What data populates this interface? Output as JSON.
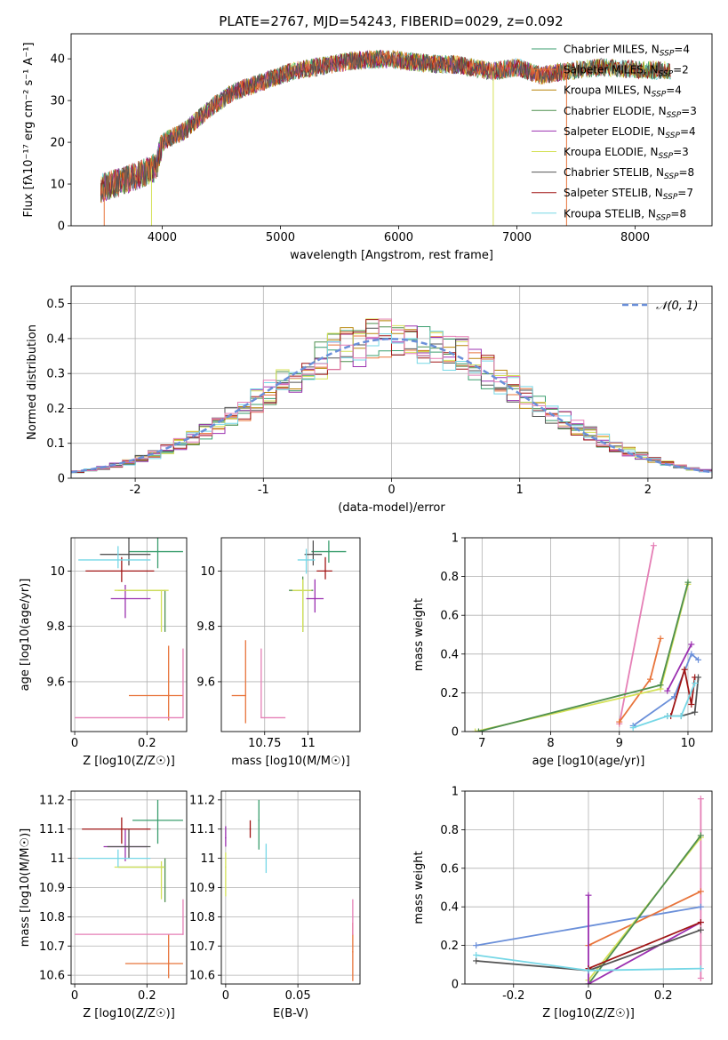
{
  "figure_title": "PLATE=2767, MJD=54243, FIBERID=0029, z=0.092",
  "models": [
    {
      "name": "Chabrier MILES",
      "n": "4",
      "color": "#3a9e6e"
    },
    {
      "name": "Salpeter MILES",
      "n": "2",
      "color": "#e8743b"
    },
    {
      "name": "Kroupa MILES",
      "n": "4",
      "color": "#b8860b"
    },
    {
      "name": "Chabrier ELODIE",
      "n": "3",
      "color": "#4f8f4f"
    },
    {
      "name": "Salpeter ELODIE",
      "n": "4",
      "color": "#9b30b0"
    },
    {
      "name": "Kroupa ELODIE",
      "n": "3",
      "color": "#d4e157"
    },
    {
      "name": "Chabrier STELIB",
      "n": "8",
      "color": "#555555"
    },
    {
      "name": "Salpeter STELIB",
      "n": "7",
      "color": "#a01515"
    },
    {
      "name": "Kroupa STELIB",
      "n": "8",
      "color": "#76d7e6"
    }
  ],
  "chart_data": [
    {
      "id": "spectrum",
      "type": "line",
      "xlabel": "wavelength [Angstrom, rest frame]",
      "ylabel": "Flux [fλ10⁻¹⁷ erg cm⁻² s⁻¹ A⁻¹]",
      "xlim": [
        3230,
        8650
      ],
      "ylim": [
        0,
        46
      ],
      "xticks": [
        4000,
        5000,
        6000,
        7000,
        8000
      ],
      "yticks": [
        0,
        10,
        20,
        30,
        40
      ],
      "legend_position": "upper-right",
      "grid": false,
      "continuum": [
        [
          3480,
          9
        ],
        [
          3700,
          11
        ],
        [
          3950,
          14
        ],
        [
          4000,
          20
        ],
        [
          4200,
          23
        ],
        [
          4400,
          28
        ],
        [
          4600,
          32
        ],
        [
          4900,
          35
        ],
        [
          5100,
          37
        ],
        [
          5300,
          38
        ],
        [
          5600,
          39.5
        ],
        [
          5900,
          40
        ],
        [
          6200,
          39
        ],
        [
          6500,
          38.5
        ],
        [
          6800,
          37
        ],
        [
          7000,
          38
        ],
        [
          7200,
          36
        ],
        [
          7400,
          37
        ],
        [
          7700,
          38
        ],
        [
          8000,
          37.5
        ],
        [
          8400,
          37
        ]
      ]
    },
    {
      "id": "residuals",
      "type": "histogram",
      "xlabel": "(data-model)/error",
      "ylabel": "Normed distribution",
      "xlim": [
        -2.5,
        2.5
      ],
      "ylim": [
        0,
        0.55
      ],
      "xticks": [
        -2,
        -1,
        0,
        1,
        2
      ],
      "yticks": [
        0.0,
        0.1,
        0.2,
        0.3,
        0.4,
        0.5
      ],
      "grid": true,
      "legend": "𝒩(0, 1)",
      "legend_position": "upper-right",
      "reference": "normal(0,1)"
    },
    {
      "id": "z_age",
      "type": "errorbar",
      "xlabel": "Z [log10(Z/Z☉)]",
      "ylabel": "age  [log10(age/yr)]",
      "xlim": [
        -0.01,
        0.31
      ],
      "ylim": [
        9.42,
        10.12
      ],
      "xticks": [
        0.0,
        0.2
      ],
      "yticks": [
        9.6,
        9.8,
        10.0
      ],
      "grid": true,
      "points": [
        {
          "m": 0,
          "x": 0.23,
          "y": 10.07,
          "xerr": [
            0.08,
            0.07
          ],
          "yerr": [
            0.06,
            0.05
          ]
        },
        {
          "m": 1,
          "x": 0.26,
          "y": 9.55,
          "xerr": [
            0.11,
            0.04
          ],
          "yerr": [
            0.09,
            0.18
          ]
        },
        {
          "m": 2,
          "x": 0.13,
          "y": 9.93,
          "xerr": [
            0.0,
            0.0
          ],
          "yerr": [
            0.0,
            0.0
          ]
        },
        {
          "m": 3,
          "x": 0.25,
          "y": 9.93,
          "xerr": [
            0.13,
            0.0
          ],
          "yerr": [
            0.15,
            0.0
          ]
        },
        {
          "m": 4,
          "x": 0.14,
          "y": 9.9,
          "xerr": [
            0.04,
            0.07
          ],
          "yerr": [
            0.07,
            0.05
          ]
        },
        {
          "m": 5,
          "x": 0.24,
          "y": 9.93,
          "xerr": [
            0.13,
            0.02
          ],
          "yerr": [
            0.15,
            0.0
          ]
        },
        {
          "m": 6,
          "x": 0.15,
          "y": 10.06,
          "xerr": [
            0.08,
            0.06
          ],
          "yerr": [
            0.04,
            0.06
          ]
        },
        {
          "m": 7,
          "x": 0.13,
          "y": 10.0,
          "xerr": [
            0.1,
            0.09
          ],
          "yerr": [
            0.04,
            0.05
          ]
        },
        {
          "m": 8,
          "x": 0.12,
          "y": 10.04,
          "xerr": [
            0.11,
            0.09
          ],
          "yerr": [
            0.03,
            0.05
          ]
        },
        {
          "m": -1,
          "x": 0.3,
          "y": 9.47,
          "xerr": [
            0.3,
            0.0
          ],
          "yerr": [
            0.0,
            0.25
          ],
          "color": "#e57fb6"
        }
      ]
    },
    {
      "id": "mass_age",
      "type": "errorbar",
      "xlabel": "mass [log10(M/M☉)]",
      "ylabel": "",
      "xlim": [
        10.5,
        11.3
      ],
      "ylim": [
        9.42,
        10.12
      ],
      "xticks": [
        10.75,
        11.0
      ],
      "yticks": [
        9.6,
        9.8,
        10.0
      ],
      "grid": true,
      "points": [
        {
          "m": 0,
          "x": 11.12,
          "y": 10.07,
          "xerr": [
            0.1,
            0.1
          ],
          "yerr": [
            0.04,
            0.04
          ]
        },
        {
          "m": 1,
          "x": 10.64,
          "y": 9.55,
          "xerr": [
            0.08,
            0.0
          ],
          "yerr": [
            0.1,
            0.2
          ]
        },
        {
          "m": 3,
          "x": 10.97,
          "y": 9.93,
          "xerr": [
            0.08,
            0.06
          ],
          "yerr": [
            0.15,
            0.05
          ]
        },
        {
          "m": 4,
          "x": 11.04,
          "y": 9.9,
          "xerr": [
            0.05,
            0.05
          ],
          "yerr": [
            0.05,
            0.07
          ]
        },
        {
          "m": 5,
          "x": 10.97,
          "y": 9.93,
          "xerr": [
            0.06,
            0.05
          ],
          "yerr": [
            0.15,
            0.04
          ]
        },
        {
          "m": 6,
          "x": 11.03,
          "y": 10.06,
          "xerr": [
            0.05,
            0.05
          ],
          "yerr": [
            0.04,
            0.05
          ]
        },
        {
          "m": 7,
          "x": 11.1,
          "y": 10.0,
          "xerr": [
            0.05,
            0.04
          ],
          "yerr": [
            0.03,
            0.05
          ]
        },
        {
          "m": 8,
          "x": 10.99,
          "y": 10.04,
          "xerr": [
            0.05,
            0.05
          ],
          "yerr": [
            0.05,
            0.04
          ]
        },
        {
          "m": -1,
          "x": 10.73,
          "y": 9.47,
          "xerr": [
            0.0,
            0.14
          ],
          "yerr": [
            0.0,
            0.25
          ],
          "color": "#e57fb6"
        }
      ]
    },
    {
      "id": "age_weight",
      "type": "line",
      "xlabel": "age  [log10(age/yr)]",
      "ylabel": "mass weight",
      "xlim": [
        6.75,
        10.35
      ],
      "ylim": [
        0,
        1.0
      ],
      "xticks": [
        7,
        8,
        9,
        10
      ],
      "yticks": [
        0.0,
        0.2,
        0.4,
        0.6,
        0.8,
        1.0
      ],
      "grid": true,
      "series": [
        {
          "m": -1,
          "color": "#e57fb6",
          "x": [
            9.0,
            9.5
          ],
          "y": [
            0.04,
            0.96
          ]
        },
        {
          "m": 1,
          "color": "#e8743b",
          "x": [
            9.0,
            9.45,
            9.6
          ],
          "y": [
            0.05,
            0.27,
            0.48
          ]
        },
        {
          "m": 5,
          "color": "#d4e157",
          "x": [
            6.9,
            9.6,
            10.0
          ],
          "y": [
            0.0,
            0.22,
            0.76
          ]
        },
        {
          "m": 3,
          "color": "#4f8f4f",
          "x": [
            6.95,
            9.6,
            10.0
          ],
          "y": [
            0.0,
            0.24,
            0.77
          ]
        },
        {
          "m": 4,
          "color": "#9b30b0",
          "x": [
            9.7,
            10.05
          ],
          "y": [
            0.21,
            0.45
          ]
        },
        {
          "m": 0,
          "color": "#6a8fd9",
          "x": [
            9.2,
            9.8,
            10.05,
            10.15
          ],
          "y": [
            0.03,
            0.18,
            0.4,
            0.37
          ]
        },
        {
          "m": 7,
          "color": "#a01515",
          "x": [
            9.75,
            9.95,
            10.05,
            10.1
          ],
          "y": [
            0.08,
            0.32,
            0.14,
            0.28
          ]
        },
        {
          "m": 6,
          "color": "#555555",
          "x": [
            9.7,
            9.9,
            10.1,
            10.15
          ],
          "y": [
            0.08,
            0.08,
            0.1,
            0.28
          ]
        },
        {
          "m": 8,
          "color": "#76d7e6",
          "x": [
            9.2,
            9.7,
            9.9,
            10.1
          ],
          "y": [
            0.02,
            0.08,
            0.08,
            0.25
          ]
        }
      ]
    },
    {
      "id": "z_mass",
      "type": "errorbar",
      "xlabel": "Z [log10(Z/Z☉)]",
      "ylabel": "mass [log10(M/M☉)]",
      "xlim": [
        -0.01,
        0.31
      ],
      "ylim": [
        10.57,
        11.23
      ],
      "xticks": [
        0.0,
        0.2
      ],
      "yticks": [
        10.6,
        10.7,
        10.8,
        10.9,
        11.0,
        11.1,
        11.2
      ],
      "grid": true,
      "points": [
        {
          "m": 0,
          "x": 0.23,
          "y": 11.13,
          "xerr": [
            0.07,
            0.07
          ],
          "yerr": [
            0.08,
            0.07
          ]
        },
        {
          "m": 1,
          "x": 0.26,
          "y": 10.64,
          "xerr": [
            0.12,
            0.04
          ],
          "yerr": [
            0.05,
            0.1
          ]
        },
        {
          "m": 3,
          "x": 0.25,
          "y": 10.97,
          "xerr": [
            0.13,
            0.0
          ],
          "yerr": [
            0.12,
            0.03
          ]
        },
        {
          "m": 4,
          "x": 0.14,
          "y": 11.04,
          "xerr": [
            0.06,
            0.06
          ],
          "yerr": [
            0.05,
            0.06
          ]
        },
        {
          "m": 5,
          "x": 0.24,
          "y": 10.97,
          "xerr": [
            0.13,
            0.01
          ],
          "yerr": [
            0.11,
            0.02
          ]
        },
        {
          "m": 6,
          "x": 0.15,
          "y": 11.04,
          "xerr": [
            0.06,
            0.06
          ],
          "yerr": [
            0.04,
            0.06
          ]
        },
        {
          "m": 7,
          "x": 0.13,
          "y": 11.1,
          "xerr": [
            0.11,
            0.08
          ],
          "yerr": [
            0.05,
            0.04
          ]
        },
        {
          "m": 8,
          "x": 0.12,
          "y": 11.0,
          "xerr": [
            0.11,
            0.09
          ],
          "yerr": [
            0.03,
            0.03
          ]
        },
        {
          "m": -1,
          "x": 0.3,
          "y": 10.74,
          "xerr": [
            0.3,
            0.0
          ],
          "yerr": [
            0.0,
            0.12
          ],
          "color": "#e57fb6"
        }
      ]
    },
    {
      "id": "ebv_mass",
      "type": "errorbar",
      "xlabel": "E(B-V)",
      "ylabel": "",
      "xlim": [
        -0.003,
        0.093
      ],
      "ylim": [
        10.57,
        11.23
      ],
      "xticks": [
        0.0,
        0.05
      ],
      "yticks": [
        10.6,
        10.7,
        10.8,
        10.9,
        11.0,
        11.1,
        11.2
      ],
      "grid": true,
      "points": [
        {
          "m": 4,
          "x": 0.0,
          "y": 11.07,
          "xerr": [
            0,
            0
          ],
          "yerr": [
            0.03,
            0.04
          ]
        },
        {
          "m": 5,
          "x": 0.0,
          "y": 10.97,
          "xerr": [
            0,
            0
          ],
          "yerr": [
            0.1,
            0.05
          ]
        },
        {
          "m": 7,
          "x": 0.017,
          "y": 11.1,
          "xerr": [
            0,
            0
          ],
          "yerr": [
            0.03,
            0.03
          ]
        },
        {
          "m": 0,
          "x": 0.023,
          "y": 11.13,
          "xerr": [
            0,
            0
          ],
          "yerr": [
            0.1,
            0.07
          ]
        },
        {
          "m": 8,
          "x": 0.028,
          "y": 11.0,
          "xerr": [
            0,
            0
          ],
          "yerr": [
            0.05,
            0.05
          ]
        },
        {
          "m": 1,
          "x": 0.088,
          "y": 10.68,
          "xerr": [
            0,
            0
          ],
          "yerr": [
            0.1,
            0.1
          ]
        },
        {
          "m": -1,
          "x": 0.088,
          "y": 10.74,
          "xerr": [
            0,
            0
          ],
          "yerr": [
            0.0,
            0.12
          ],
          "color": "#e57fb6"
        }
      ]
    },
    {
      "id": "z_weight",
      "type": "line",
      "xlabel": "Z [log10(Z/Z☉)]",
      "ylabel": "mass weight",
      "xlim": [
        -0.33,
        0.33
      ],
      "ylim": [
        0,
        1.0
      ],
      "xticks": [
        -0.2,
        0.0,
        0.2
      ],
      "yticks": [
        0.0,
        0.2,
        0.4,
        0.6,
        0.8,
        1.0
      ],
      "grid": true,
      "series": [
        {
          "m": -1,
          "color": "#e57fb6",
          "x": [
            0.3,
            0.3
          ],
          "y": [
            0.03,
            0.96
          ]
        },
        {
          "m": 0,
          "color": "#6a8fd9",
          "x": [
            -0.3,
            0.3
          ],
          "y": [
            0.2,
            0.4
          ]
        },
        {
          "m": 1,
          "color": "#e8743b",
          "x": [
            0.0,
            0.3
          ],
          "y": [
            0.2,
            0.48
          ]
        },
        {
          "m": 5,
          "color": "#d4e157",
          "x": [
            0.0,
            0.3
          ],
          "y": [
            0.02,
            0.76
          ]
        },
        {
          "m": 3,
          "color": "#4f8f4f",
          "x": [
            0.0,
            0.3
          ],
          "y": [
            0.0,
            0.77
          ]
        },
        {
          "m": 4,
          "color": "#9b30b0",
          "x": [
            0.0,
            0.0,
            0.3
          ],
          "y": [
            0.46,
            0.0,
            0.32
          ]
        },
        {
          "m": 7,
          "color": "#a01515",
          "x": [
            0.0,
            0.3
          ],
          "y": [
            0.08,
            0.32
          ]
        },
        {
          "m": 6,
          "color": "#555555",
          "x": [
            -0.3,
            0.0,
            0.3
          ],
          "y": [
            0.12,
            0.07,
            0.28
          ]
        },
        {
          "m": 8,
          "color": "#76d7e6",
          "x": [
            -0.3,
            0.0,
            0.3
          ],
          "y": [
            0.15,
            0.07,
            0.08
          ]
        }
      ]
    }
  ]
}
